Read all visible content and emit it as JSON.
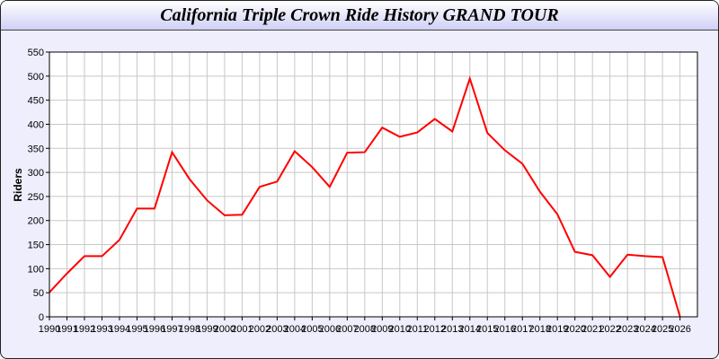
{
  "chart_data": {
    "type": "line",
    "title": "California Triple Crown Ride History GRAND TOUR",
    "xlabel": "",
    "ylabel": "Riders",
    "ylim": [
      0,
      550
    ],
    "yticks": [
      0,
      50,
      100,
      150,
      200,
      250,
      300,
      350,
      400,
      450,
      500,
      550
    ],
    "grid": true,
    "line_color": "#ff0000",
    "x": [
      1990,
      1991,
      1992,
      1993,
      1994,
      1995,
      1996,
      1997,
      1998,
      1999,
      2000,
      2001,
      2002,
      2003,
      2004,
      2005,
      2006,
      2007,
      2008,
      2009,
      2010,
      2011,
      2012,
      2013,
      2014,
      2015,
      2016,
      2017,
      2018,
      2019,
      2020,
      2021,
      2022,
      2023,
      2024,
      2025,
      2026
    ],
    "series": [
      {
        "values": [
          51,
          90,
          126,
          126,
          160,
          225,
          225,
          342,
          286,
          242,
          211,
          212,
          270,
          281,
          344,
          311,
          270,
          341,
          342,
          393,
          374,
          383,
          411,
          385,
          495,
          382,
          346,
          318,
          260,
          213,
          135,
          128,
          83,
          129,
          126,
          124,
          0
        ]
      }
    ]
  }
}
